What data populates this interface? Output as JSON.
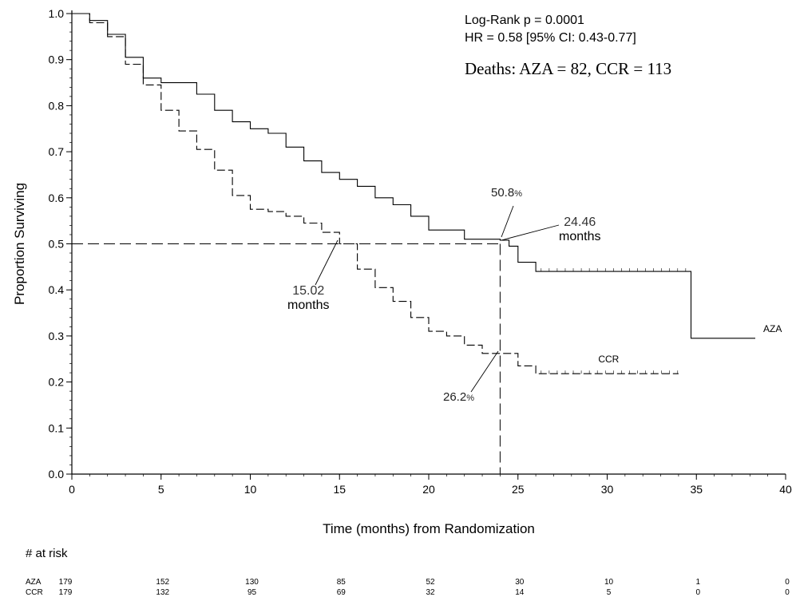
{
  "chart_data": {
    "type": "line",
    "xlabel": "Time (months) from Randomization",
    "ylabel": "Proportion Surviving",
    "xlim": [
      0,
      40
    ],
    "ylim": [
      0.0,
      1.0
    ],
    "x_ticks": [
      0,
      5,
      10,
      15,
      20,
      25,
      30,
      35,
      40
    ],
    "y_ticks": [
      0.0,
      0.1,
      0.2,
      0.3,
      0.4,
      0.5,
      0.6,
      0.7,
      0.8,
      0.9,
      1.0
    ],
    "y_tick_labels": [
      "0.0",
      "0.1",
      "0.2",
      "0.3",
      "0.4",
      "0.5",
      "0.6",
      "0.7",
      "0.8",
      "0.9",
      "1.0"
    ],
    "grid": false,
    "series": [
      {
        "name": "AZA",
        "style": "solid",
        "points": [
          [
            0,
            1.0
          ],
          [
            1,
            0.985
          ],
          [
            2,
            0.955
          ],
          [
            3,
            0.905
          ],
          [
            4,
            0.86
          ],
          [
            5,
            0.85
          ],
          [
            6,
            0.85
          ],
          [
            7,
            0.825
          ],
          [
            8,
            0.79
          ],
          [
            9,
            0.765
          ],
          [
            10,
            0.75
          ],
          [
            11,
            0.74
          ],
          [
            12,
            0.71
          ],
          [
            13,
            0.68
          ],
          [
            14,
            0.655
          ],
          [
            15,
            0.64
          ],
          [
            16,
            0.625
          ],
          [
            17,
            0.6
          ],
          [
            18,
            0.585
          ],
          [
            19,
            0.56
          ],
          [
            20,
            0.53
          ],
          [
            21,
            0.53
          ],
          [
            22,
            0.51
          ],
          [
            23,
            0.51
          ],
          [
            24,
            0.508
          ],
          [
            24.5,
            0.495
          ],
          [
            25,
            0.46
          ],
          [
            26,
            0.44
          ],
          [
            30,
            0.44
          ],
          [
            34.7,
            0.44
          ],
          [
            34.7,
            0.295
          ],
          [
            38.3,
            0.295
          ]
        ]
      },
      {
        "name": "CCR",
        "style": "dashed",
        "points": [
          [
            0,
            1.0
          ],
          [
            1,
            0.98
          ],
          [
            2,
            0.95
          ],
          [
            3,
            0.89
          ],
          [
            4,
            0.845
          ],
          [
            5,
            0.79
          ],
          [
            6,
            0.745
          ],
          [
            7,
            0.705
          ],
          [
            8,
            0.66
          ],
          [
            9,
            0.605
          ],
          [
            10,
            0.575
          ],
          [
            11,
            0.57
          ],
          [
            12,
            0.56
          ],
          [
            13,
            0.545
          ],
          [
            14,
            0.525
          ],
          [
            15,
            0.5
          ],
          [
            16,
            0.445
          ],
          [
            17,
            0.405
          ],
          [
            18,
            0.375
          ],
          [
            19,
            0.34
          ],
          [
            20,
            0.31
          ],
          [
            21,
            0.3
          ],
          [
            22,
            0.28
          ],
          [
            23,
            0.262
          ],
          [
            24,
            0.262
          ],
          [
            25,
            0.235
          ],
          [
            26,
            0.218
          ],
          [
            30,
            0.218
          ],
          [
            34,
            0.218
          ]
        ]
      }
    ],
    "series_labels": {
      "aza": "AZA",
      "ccr": "CCR"
    },
    "reference": {
      "median_y": 0.5,
      "time_x": 24
    },
    "annotations": {
      "stats_line1": "Log-Rank p = 0.0001",
      "stats_line2": "HR = 0.58 [95% CI: 0.43-0.77]",
      "stats_line3": "Deaths: AZA = 82, CCR = 113",
      "aza_pct": "50.8",
      "ccr_pct": "26.2",
      "pct_sign": "%",
      "aza_median_value": "24.46",
      "ccr_median_value": "15.02",
      "median_unit": "months"
    },
    "at_risk": {
      "header": "# at risk",
      "times": [
        0,
        5,
        10,
        15,
        20,
        25,
        30,
        35,
        40
      ],
      "rows": [
        {
          "label": "AZA",
          "counts": [
            179,
            152,
            130,
            85,
            52,
            30,
            10,
            1,
            0
          ]
        },
        {
          "label": "CCR",
          "counts": [
            179,
            132,
            95,
            69,
            32,
            14,
            5,
            0,
            0
          ]
        }
      ]
    }
  }
}
